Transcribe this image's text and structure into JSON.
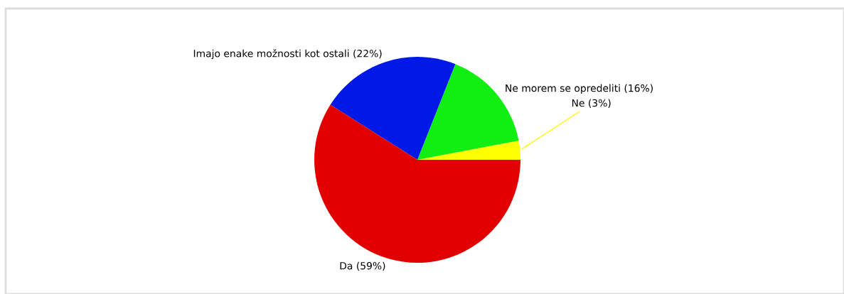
{
  "chart_data": {
    "type": "pie",
    "categories": [
      "Ne (3%)",
      "Ne morem se opredeliti (16%)",
      "Imajo enake možnosti kot ostali (22%)",
      "Da (59%)"
    ],
    "values": [
      3,
      16,
      22,
      59
    ],
    "colors": [
      "#ffff00",
      "#11ee11",
      "#0019e6",
      "#e00000"
    ],
    "legend": false
  }
}
